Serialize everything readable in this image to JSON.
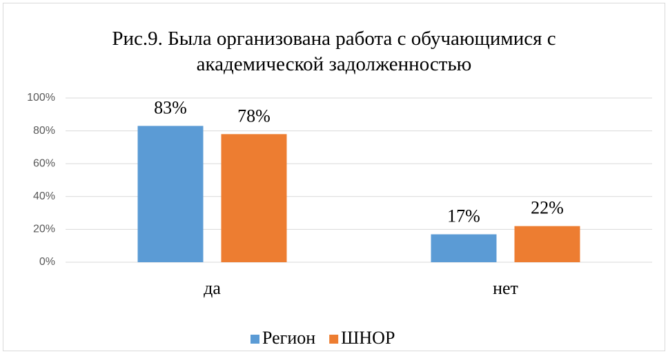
{
  "chart_data": {
    "type": "bar",
    "title": "Рис.9. Была организована работа с обучающимися с академической задолженностью",
    "categories": [
      "да",
      "нет"
    ],
    "series": [
      {
        "name": "Регион",
        "color": "#5b9bd5",
        "values": [
          83,
          17
        ],
        "value_labels": [
          "83%",
          "17%"
        ]
      },
      {
        "name": "ШНОР",
        "color": "#ed7d31",
        "values": [
          78,
          22
        ],
        "value_labels": [
          "78%",
          "22%"
        ]
      }
    ],
    "ylim": [
      0,
      100
    ],
    "yticks": [
      {
        "value": 0,
        "label": "0%"
      },
      {
        "value": 20,
        "label": "20%"
      },
      {
        "value": 40,
        "label": "40%"
      },
      {
        "value": 60,
        "label": "60%"
      },
      {
        "value": 80,
        "label": "80%"
      },
      {
        "value": 100,
        "label": "100%"
      }
    ],
    "grid": true,
    "legend": "bottom"
  }
}
